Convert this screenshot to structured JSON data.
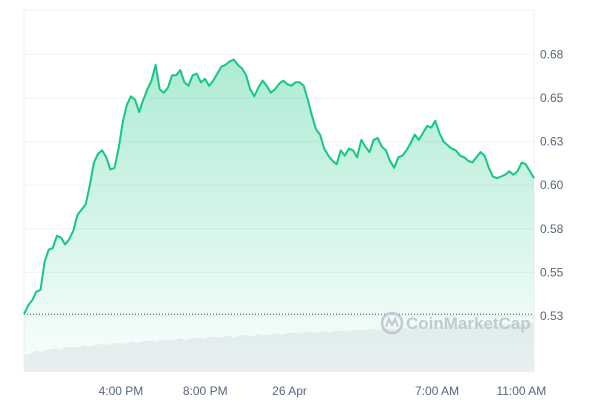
{
  "chart_data": {
    "type": "area",
    "title": "",
    "xlabel": "",
    "ylabel": "",
    "ylim": [
      0.51,
      0.69
    ],
    "grid": true,
    "legend": "none",
    "line_color": "#16c784",
    "reference_line": {
      "value": 0.526,
      "style": "dotted"
    },
    "y_ticks": [
      {
        "value": 0.675,
        "label": "0.68"
      },
      {
        "value": 0.65,
        "label": "0.65"
      },
      {
        "value": 0.625,
        "label": "0.63"
      },
      {
        "value": 0.6,
        "label": "0.60"
      },
      {
        "value": 0.575,
        "label": "0.58"
      },
      {
        "value": 0.55,
        "label": "0.55"
      },
      {
        "value": 0.525,
        "label": "0.53"
      }
    ],
    "x_ticks": [
      {
        "label": "4:00 PM",
        "hour": 16
      },
      {
        "label": "8:00 PM",
        "hour": 20
      },
      {
        "label": "26 Apr",
        "hour": 24
      },
      {
        "label": "7:00 AM",
        "hour": 31
      },
      {
        "label": "11:00 AM",
        "hour": 35
      }
    ],
    "x_range_hours": [
      11.4,
      35.6
    ],
    "values": [
      0.526,
      0.531,
      0.534,
      0.539,
      0.54,
      0.556,
      0.563,
      0.564,
      0.571,
      0.57,
      0.566,
      0.569,
      0.574,
      0.583,
      0.586,
      0.589,
      0.6,
      0.613,
      0.618,
      0.62,
      0.616,
      0.609,
      0.61,
      0.621,
      0.636,
      0.646,
      0.651,
      0.649,
      0.642,
      0.649,
      0.655,
      0.66,
      0.669,
      0.655,
      0.653,
      0.656,
      0.663,
      0.663,
      0.666,
      0.659,
      0.657,
      0.663,
      0.664,
      0.659,
      0.661,
      0.657,
      0.66,
      0.664,
      0.668,
      0.669,
      0.671,
      0.672,
      0.669,
      0.667,
      0.663,
      0.655,
      0.651,
      0.656,
      0.66,
      0.657,
      0.653,
      0.655,
      0.658,
      0.66,
      0.658,
      0.657,
      0.659,
      0.659,
      0.657,
      0.649,
      0.64,
      0.632,
      0.629,
      0.621,
      0.617,
      0.614,
      0.612,
      0.62,
      0.617,
      0.621,
      0.62,
      0.616,
      0.626,
      0.622,
      0.619,
      0.626,
      0.627,
      0.622,
      0.62,
      0.614,
      0.61,
      0.616,
      0.617,
      0.62,
      0.624,
      0.629,
      0.626,
      0.63,
      0.634,
      0.633,
      0.637,
      0.63,
      0.625,
      0.623,
      0.621,
      0.62,
      0.617,
      0.616,
      0.614,
      0.613,
      0.616,
      0.619,
      0.617,
      0.61,
      0.605,
      0.604,
      0.605,
      0.606,
      0.608,
      0.606,
      0.608,
      0.613,
      0.612,
      0.608,
      0.604
    ]
  },
  "watermark": "CoinMarketCap"
}
